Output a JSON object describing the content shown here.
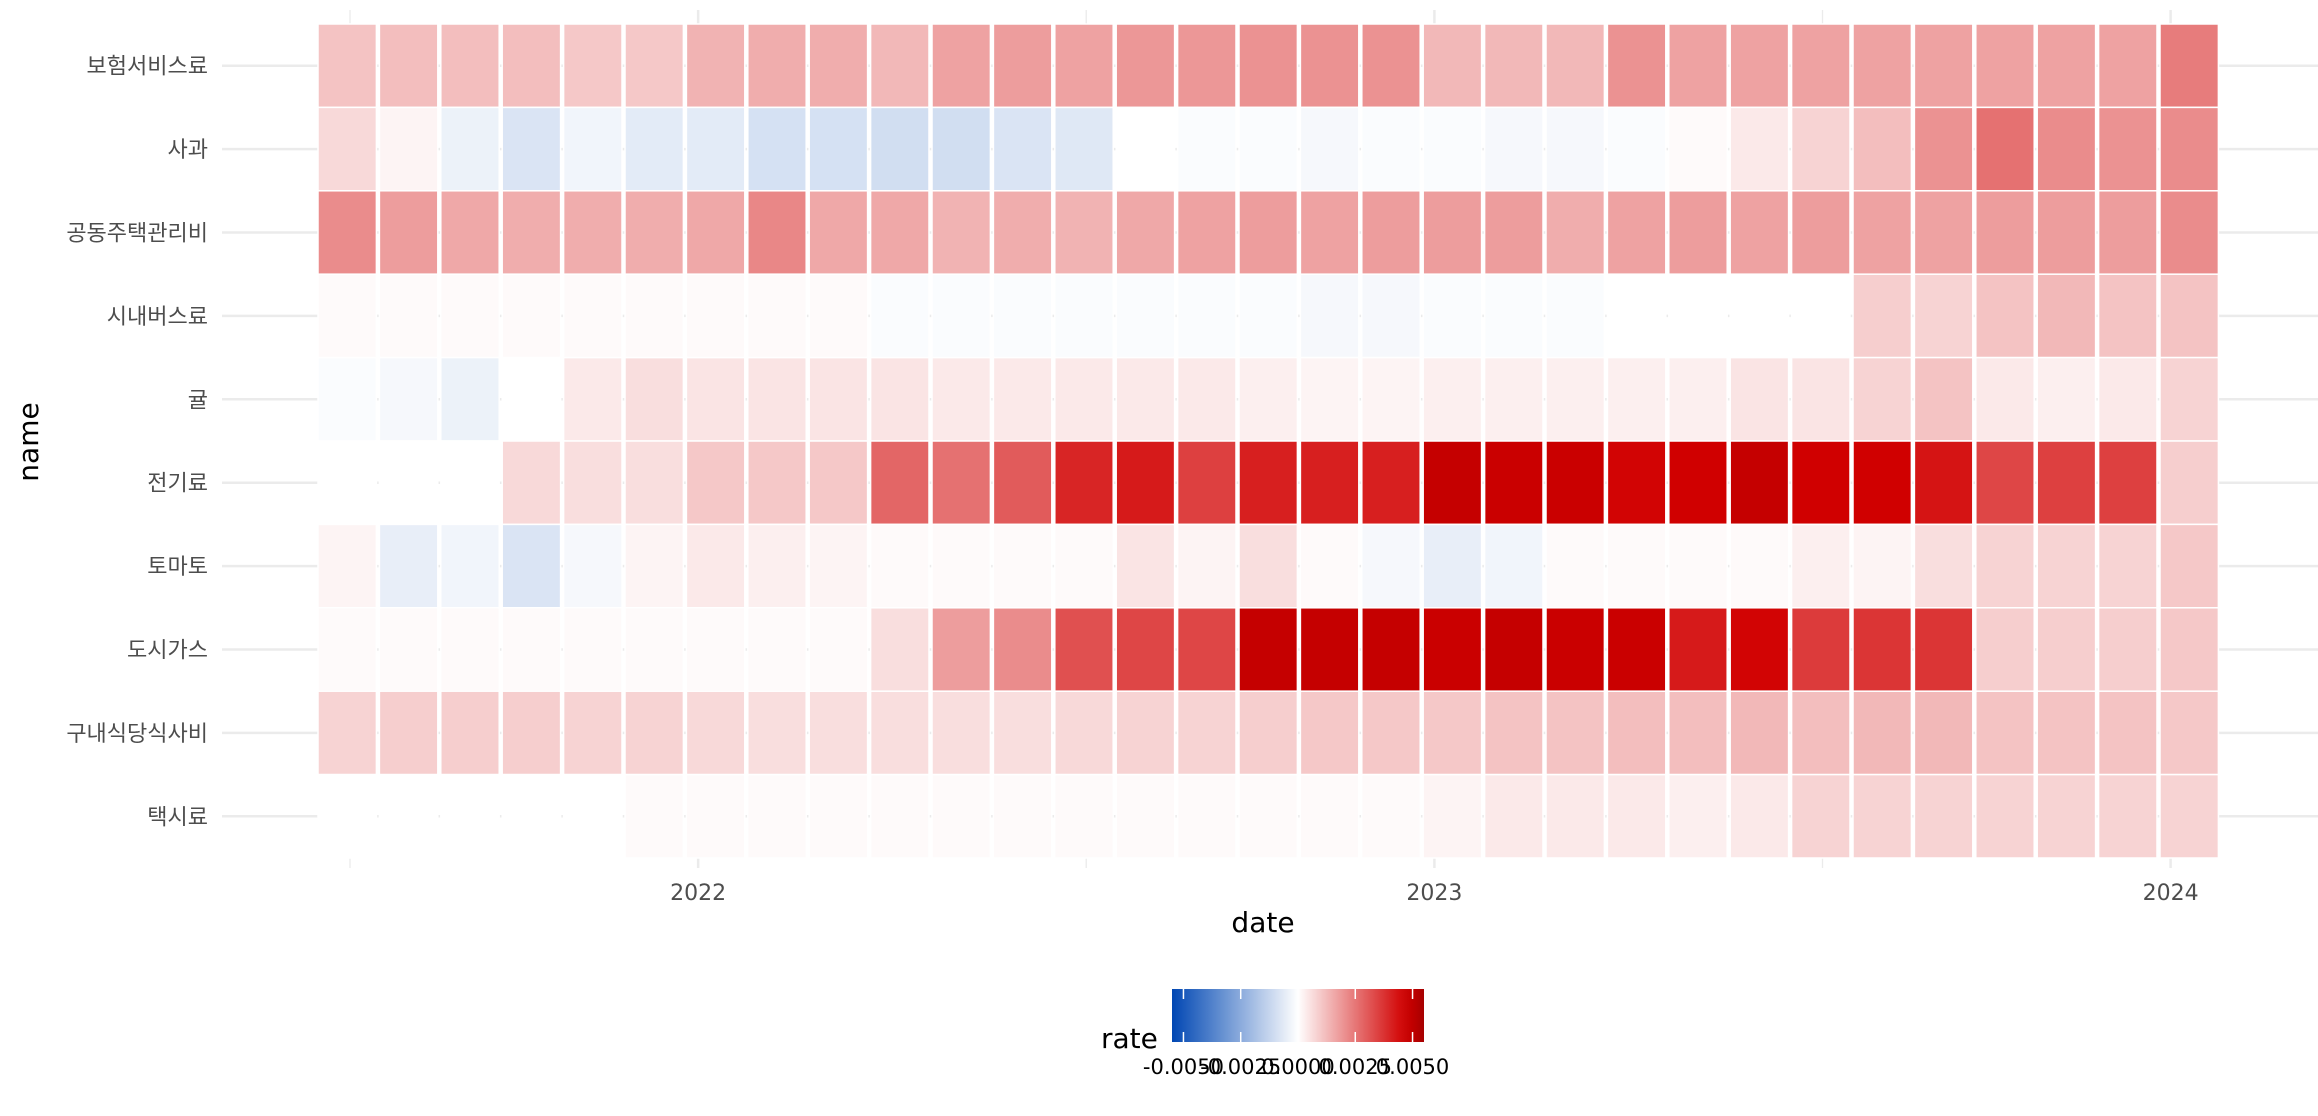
{
  "chart_data": {
    "type": "heatmap",
    "xlabel": "date",
    "ylabel": "name",
    "x_ticks": [
      "2022",
      "2023",
      "2024"
    ],
    "x_tick_dates": [
      "2022-01-01",
      "2023-01-01",
      "2024-01-01"
    ],
    "dates": [
      "2021-07",
      "2021-08",
      "2021-09",
      "2021-10",
      "2021-11",
      "2021-12",
      "2022-01",
      "2022-02",
      "2022-03",
      "2022-04",
      "2022-05",
      "2022-06",
      "2022-07",
      "2022-08",
      "2022-09",
      "2022-10",
      "2022-11",
      "2022-12",
      "2023-01",
      "2023-02",
      "2023-03",
      "2023-04",
      "2023-05",
      "2023-06",
      "2023-07",
      "2023-08",
      "2023-09",
      "2023-10",
      "2023-11",
      "2023-12",
      "2024-01"
    ],
    "names": [
      "보험서비스료",
      "사과",
      "공동주택관리비",
      "시내버스료",
      "귤",
      "전기료",
      "토마토",
      "도시가스",
      "구내식당식사비",
      "택시료"
    ],
    "values": [
      [
        0.0011,
        0.0012,
        0.0012,
        0.0012,
        0.001,
        0.001,
        0.0014,
        0.0015,
        0.0015,
        0.0013,
        0.0017,
        0.0018,
        0.0017,
        0.0019,
        0.0019,
        0.002,
        0.002,
        0.002,
        0.0013,
        0.0013,
        0.0013,
        0.002,
        0.0017,
        0.0017,
        0.0017,
        0.0017,
        0.0017,
        0.0017,
        0.0017,
        0.0017,
        0.0024
      ],
      [
        0.0007,
        0.0002,
        -0.0004,
        -0.0008,
        -0.0003,
        -0.0006,
        -0.0006,
        -0.0009,
        -0.0009,
        -0.001,
        -0.001,
        -0.0008,
        -0.0007,
        0.0,
        -0.0001,
        -0.0001,
        -0.0002,
        -0.0001,
        -0.0001,
        -0.0002,
        -0.0002,
        -0.0001,
        0.0001,
        0.0004,
        0.0008,
        0.0012,
        0.002,
        0.0026,
        0.0021,
        0.002,
        0.0021
      ],
      [
        0.0021,
        0.0018,
        0.0016,
        0.0015,
        0.0015,
        0.0015,
        0.0016,
        0.0022,
        0.0016,
        0.0016,
        0.0014,
        0.0015,
        0.0014,
        0.0016,
        0.0017,
        0.0018,
        0.0017,
        0.0018,
        0.0018,
        0.0018,
        0.0015,
        0.0017,
        0.0018,
        0.0017,
        0.0018,
        0.0017,
        0.0017,
        0.0018,
        0.0018,
        0.0018,
        0.0021
      ],
      [
        0.0001,
        0.0001,
        0.0001,
        0.0001,
        0.0001,
        0.0001,
        0.0001,
        0.0001,
        0.0001,
        -0.0001,
        -0.0001,
        -0.0001,
        -0.0001,
        -0.0001,
        -0.0001,
        -0.0001,
        -0.0002,
        -0.0002,
        -0.0001,
        -0.0001,
        -0.0001,
        0.0,
        0.0,
        0.0,
        0.0,
        0.0009,
        0.0008,
        0.0011,
        0.0013,
        0.0011,
        0.0011
      ],
      [
        -0.0001,
        -0.0002,
        -0.0004,
        0.0,
        0.0004,
        0.0006,
        0.0005,
        0.0005,
        0.0005,
        0.0005,
        0.0004,
        0.0004,
        0.0004,
        0.0004,
        0.0004,
        0.0003,
        0.0002,
        0.0002,
        0.0003,
        0.0003,
        0.0003,
        0.0003,
        0.0003,
        0.0005,
        0.0005,
        0.0008,
        0.0011,
        0.0004,
        0.0003,
        0.0004,
        0.0008
      ],
      [
        0.0,
        0.0,
        0.0,
        0.0007,
        0.0006,
        0.0006,
        0.001,
        0.001,
        0.001,
        0.0028,
        0.0026,
        0.003,
        0.004,
        0.0042,
        0.0035,
        0.0041,
        0.0041,
        0.0041,
        0.0049,
        0.0048,
        0.0048,
        0.0046,
        0.0047,
        0.0049,
        0.0047,
        0.0047,
        0.0043,
        0.0034,
        0.0035,
        0.0035,
        0.0009
      ],
      [
        0.0002,
        -0.0005,
        -0.0003,
        -0.0008,
        -0.0002,
        0.0002,
        0.0004,
        0.0003,
        0.0002,
        0.0001,
        0.0001,
        0.0001,
        0.0001,
        0.0005,
        0.0002,
        0.0006,
        0.0001,
        -0.0002,
        -0.0005,
        -0.0003,
        0.0001,
        0.0001,
        0.0001,
        0.0001,
        0.0003,
        0.0002,
        0.0006,
        0.0008,
        0.0008,
        0.0008,
        0.001
      ],
      [
        0.0001,
        0.0001,
        0.0001,
        0.0001,
        0.0001,
        0.0001,
        0.0001,
        0.0001,
        0.0001,
        0.0006,
        0.0018,
        0.0021,
        0.0032,
        0.0034,
        0.0034,
        0.0049,
        0.0049,
        0.0049,
        0.0048,
        0.0049,
        0.0048,
        0.0048,
        0.0042,
        0.0046,
        0.0036,
        0.0037,
        0.0037,
        0.0009,
        0.0009,
        0.0009,
        0.001
      ],
      [
        0.0008,
        0.0009,
        0.0009,
        0.0009,
        0.0008,
        0.0008,
        0.0007,
        0.0006,
        0.0006,
        0.0006,
        0.0006,
        0.0006,
        0.0007,
        0.0008,
        0.0008,
        0.0009,
        0.001,
        0.001,
        0.001,
        0.0011,
        0.0011,
        0.0012,
        0.0012,
        0.0013,
        0.0012,
        0.0013,
        0.0013,
        0.0011,
        0.0011,
        0.0011,
        0.001
      ],
      [
        0.0,
        0.0,
        0.0,
        0.0,
        0.0,
        0.0001,
        0.0001,
        0.0001,
        0.0001,
        0.0001,
        0.0001,
        0.0001,
        0.0001,
        0.0001,
        0.0001,
        0.0001,
        0.0001,
        0.0001,
        0.0002,
        0.0004,
        0.0004,
        0.0004,
        0.0003,
        0.0004,
        0.0008,
        0.0008,
        0.0008,
        0.0008,
        0.0008,
        0.0008,
        0.0008
      ]
    ],
    "legend": {
      "title": "rate",
      "position": "bottom",
      "range": [
        -0.0055,
        0.0055
      ],
      "breaks": [
        -0.005,
        -0.0025,
        0.0,
        0.0025,
        0.005
      ],
      "break_labels": [
        "-0.0050",
        "-0.0025",
        "0.0000",
        "0.0025",
        "0.0050"
      ],
      "colors": {
        "low": "#0047b3",
        "mid": "#ffffff",
        "high": "#d10000",
        "max": "#a60000"
      }
    },
    "grid": true
  }
}
